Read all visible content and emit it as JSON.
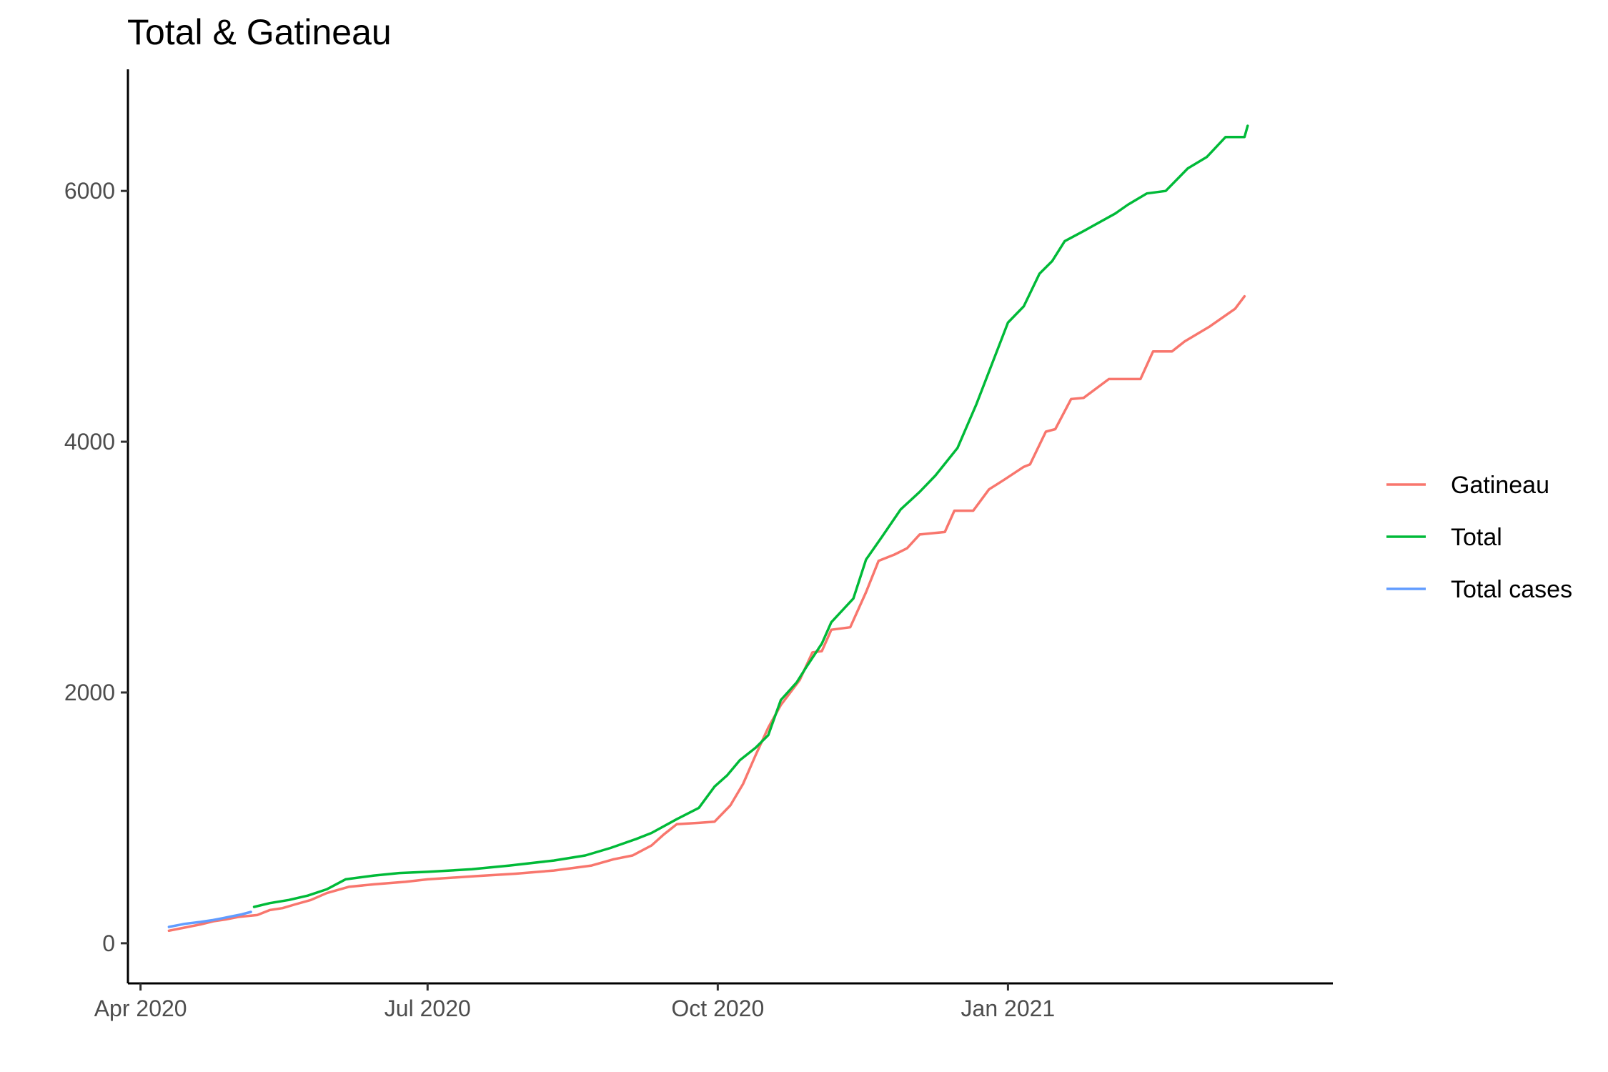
{
  "chart_data": {
    "type": "line",
    "title": "Total & Gatineau",
    "xlabel": "",
    "ylabel": "",
    "x_range": [
      "2020-03-28",
      "2021-04-14"
    ],
    "y_range": [
      -320,
      6970
    ],
    "x_ticks": [
      {
        "date": "2020-04-01",
        "label": "Apr 2020"
      },
      {
        "date": "2020-07-01",
        "label": "Jul 2020"
      },
      {
        "date": "2020-10-01",
        "label": "Oct 2020"
      },
      {
        "date": "2021-01-01",
        "label": "Jan 2021"
      }
    ],
    "y_ticks": [
      {
        "value": 0,
        "label": "0"
      },
      {
        "value": 2000,
        "label": "2000"
      },
      {
        "value": 4000,
        "label": "4000"
      },
      {
        "value": 6000,
        "label": "6000"
      }
    ],
    "grid": false,
    "legend_position": "right",
    "series": [
      {
        "name": "Gatineau",
        "color": "#F8766D",
        "x": [
          "2020-04-10",
          "2020-04-16",
          "2020-04-20",
          "2020-04-24",
          "2020-04-28",
          "2020-05-02",
          "2020-05-08",
          "2020-05-12",
          "2020-05-16",
          "2020-05-20",
          "2020-05-25",
          "2020-05-30",
          "2020-06-06",
          "2020-06-14",
          "2020-06-24",
          "2020-07-01",
          "2020-07-16",
          "2020-07-29",
          "2020-08-10",
          "2020-08-22",
          "2020-08-29",
          "2020-09-04",
          "2020-09-10",
          "2020-09-14",
          "2020-09-18",
          "2020-09-25",
          "2020-09-30",
          "2020-10-05",
          "2020-10-09",
          "2020-10-13",
          "2020-10-17",
          "2020-10-21",
          "2020-10-27",
          "2020-10-31",
          "2020-11-03",
          "2020-11-06",
          "2020-11-12",
          "2020-11-17",
          "2020-11-21",
          "2020-11-26",
          "2020-11-30",
          "2020-12-04",
          "2020-12-12",
          "2020-12-15",
          "2020-12-21",
          "2020-12-26",
          "2020-12-31",
          "2021-01-06",
          "2021-01-08",
          "2021-01-13",
          "2021-01-16",
          "2021-01-21",
          "2021-01-25",
          "2021-02-02",
          "2021-02-07",
          "2021-02-12",
          "2021-02-16",
          "2021-02-22",
          "2021-02-26",
          "2021-03-06",
          "2021-03-14",
          "2021-03-17"
        ],
        "values": [
          100,
          130,
          150,
          175,
          190,
          210,
          225,
          265,
          280,
          310,
          345,
          400,
          450,
          470,
          490,
          510,
          535,
          555,
          580,
          620,
          670,
          700,
          780,
          870,
          950,
          960,
          970,
          1100,
          1270,
          1500,
          1720,
          1900,
          2100,
          2320,
          2330,
          2500,
          2520,
          2800,
          3050,
          3100,
          3150,
          3260,
          3280,
          3450,
          3450,
          3620,
          3700,
          3800,
          3820,
          4080,
          4100,
          4340,
          4350,
          4500,
          4500,
          4500,
          4720,
          4720,
          4800,
          4920,
          5060,
          5160
        ]
      },
      {
        "name": "Total",
        "color": "#00BA38",
        "x": [
          "2020-05-07",
          "2020-05-12",
          "2020-05-18",
          "2020-05-24",
          "2020-05-30",
          "2020-06-05",
          "2020-06-14",
          "2020-06-22",
          "2020-07-01",
          "2020-07-15",
          "2020-07-27",
          "2020-08-10",
          "2020-08-20",
          "2020-08-28",
          "2020-09-05",
          "2020-09-10",
          "2020-09-18",
          "2020-09-25",
          "2020-09-30",
          "2020-10-04",
          "2020-10-08",
          "2020-10-13",
          "2020-10-17",
          "2020-10-21",
          "2020-10-26",
          "2020-10-29",
          "2020-11-03",
          "2020-11-06",
          "2020-11-13",
          "2020-11-17",
          "2020-11-22",
          "2020-11-28",
          "2020-12-04",
          "2020-12-09",
          "2020-12-16",
          "2020-12-22",
          "2021-01-01",
          "2021-01-06",
          "2021-01-11",
          "2021-01-15",
          "2021-01-19",
          "2021-01-25",
          "2021-02-04",
          "2021-02-08",
          "2021-02-14",
          "2021-02-20",
          "2021-02-27",
          "2021-03-05",
          "2021-03-11",
          "2021-03-17",
          "2021-03-18"
        ],
        "values": [
          290,
          320,
          345,
          380,
          430,
          510,
          540,
          560,
          570,
          590,
          620,
          660,
          700,
          760,
          830,
          880,
          990,
          1080,
          1250,
          1340,
          1460,
          1560,
          1660,
          1940,
          2080,
          2200,
          2390,
          2560,
          2750,
          3060,
          3240,
          3460,
          3600,
          3730,
          3950,
          4300,
          4950,
          5080,
          5340,
          5440,
          5600,
          5680,
          5820,
          5890,
          5980,
          6000,
          6180,
          6270,
          6430,
          6430,
          6520
        ]
      },
      {
        "name": "Total cases",
        "color": "#619CFF",
        "x": [
          "2020-04-10",
          "2020-04-15",
          "2020-04-20",
          "2020-04-24",
          "2020-04-27",
          "2020-04-30",
          "2020-05-03",
          "2020-05-06"
        ],
        "values": [
          130,
          155,
          170,
          185,
          200,
          215,
          230,
          250
        ]
      }
    ]
  }
}
